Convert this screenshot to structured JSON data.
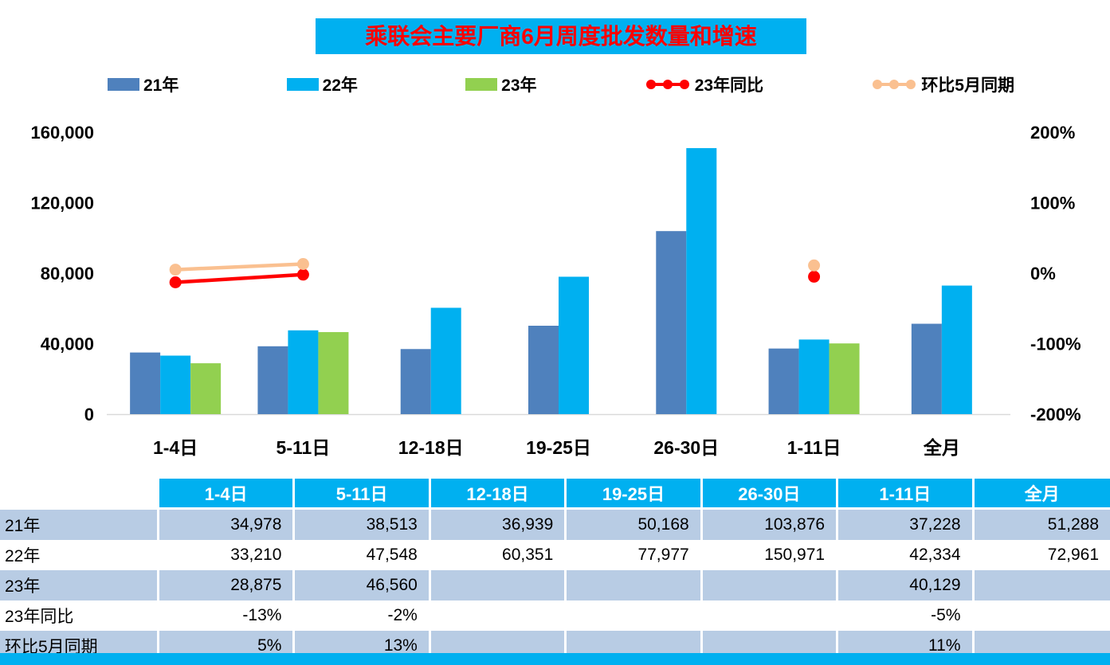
{
  "title": "乘联会主要厂商6月周度批发数量和增速",
  "colors": {
    "title_bg": "#00B0F0",
    "title_text": "#FF0000",
    "table_header_bg": "#00B0F0",
    "table_alt_row_bg": "#B8CCE4",
    "bar_21": "#4F81BD",
    "bar_22": "#00B0F0",
    "bar_23": "#92D050",
    "line_yoy": "#FF0000",
    "line_mom": "#FAC090"
  },
  "legend": [
    {
      "label": "21年",
      "swatch": "bar",
      "color": "#4F81BD"
    },
    {
      "label": "22年",
      "swatch": "bar",
      "color": "#00B0F0"
    },
    {
      "label": "23年",
      "swatch": "bar",
      "color": "#92D050"
    },
    {
      "label": "23年同比",
      "swatch": "line",
      "color": "#FF0000"
    },
    {
      "label": "环比5月同期",
      "swatch": "line",
      "color": "#FAC090"
    }
  ],
  "chart_data": {
    "type": "bar+line",
    "title": "乘联会主要厂商6月周度批发数量和增速",
    "categories": [
      "1-4日",
      "5-11日",
      "12-18日",
      "19-25日",
      "26-30日",
      "1-11日",
      "全月"
    ],
    "left_axis": {
      "min": 0,
      "max": 160000,
      "ticks": [
        {
          "label": "0",
          "value": 0
        },
        {
          "label": "40,000",
          "value": 40000
        },
        {
          "label": "80,000",
          "value": 80000
        },
        {
          "label": "120,000",
          "value": 120000
        },
        {
          "label": "160,000",
          "value": 160000
        }
      ]
    },
    "right_axis": {
      "min": -200,
      "max": 200,
      "ticks": [
        {
          "label": "-200%",
          "value": -200
        },
        {
          "label": "-100%",
          "value": -100
        },
        {
          "label": "0%",
          "value": 0
        },
        {
          "label": "100%",
          "value": 100
        },
        {
          "label": "200%",
          "value": 200
        }
      ]
    },
    "series": [
      {
        "name": "21年",
        "type": "bar",
        "axis": "left",
        "color": "#4F81BD",
        "values": [
          34978,
          38513,
          36939,
          50168,
          103876,
          37228,
          51288
        ]
      },
      {
        "name": "22年",
        "type": "bar",
        "axis": "left",
        "color": "#00B0F0",
        "values": [
          33210,
          47548,
          60351,
          77977,
          150971,
          42334,
          72961
        ]
      },
      {
        "name": "23年",
        "type": "bar",
        "axis": "left",
        "color": "#92D050",
        "values": [
          28875,
          46560,
          null,
          null,
          null,
          40129,
          null
        ]
      },
      {
        "name": "23年同比",
        "type": "line",
        "axis": "right",
        "color": "#FF0000",
        "values": [
          -13,
          -2,
          null,
          null,
          null,
          -5,
          null
        ]
      },
      {
        "name": "环比5月同期",
        "type": "line",
        "axis": "right",
        "color": "#FAC090",
        "values": [
          5,
          13,
          null,
          null,
          null,
          11,
          null
        ]
      }
    ]
  },
  "table": {
    "col_headers": [
      "",
      "1-4日",
      "5-11日",
      "12-18日",
      "19-25日",
      "26-30日",
      "1-11日",
      "全月"
    ],
    "rows": [
      {
        "label": "21年",
        "values": [
          "34,978",
          "38,513",
          "36,939",
          "50,168",
          "103,876",
          "37,228",
          "51,288"
        ]
      },
      {
        "label": "22年",
        "values": [
          "33,210",
          "47,548",
          "60,351",
          "77,977",
          "150,971",
          "42,334",
          "72,961"
        ]
      },
      {
        "label": "23年",
        "values": [
          "28,875",
          "46,560",
          "",
          "",
          "",
          "40,129",
          ""
        ]
      },
      {
        "label": "23年同比",
        "values": [
          "-13%",
          "-2%",
          "",
          "",
          "",
          "-5%",
          ""
        ]
      },
      {
        "label": "环比5月同期",
        "values": [
          "5%",
          "13%",
          "",
          "",
          "",
          "11%",
          ""
        ]
      }
    ]
  }
}
